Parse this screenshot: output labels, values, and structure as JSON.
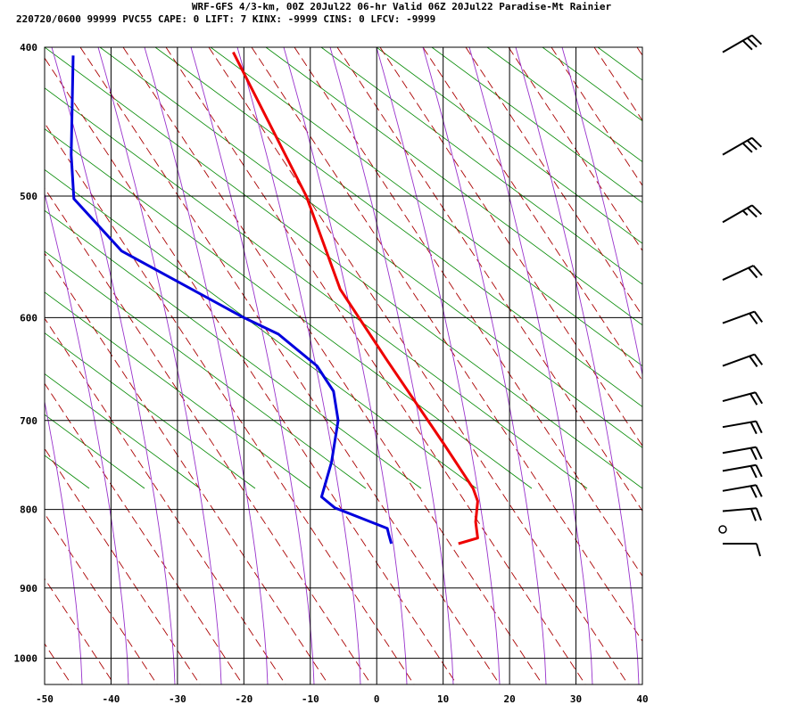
{
  "header": {
    "line1": "WRF-GFS 4/3-km, 00Z 20Jul22 06-hr Valid 06Z 20Jul22 Paradise-Mt Rainier",
    "line2": "220720/0600 99999  PVC55   CAPE:     0 LIFT:     7 KINX: -9999 CINS:     0 LFCV: -9999"
  },
  "chart_data": {
    "type": "line",
    "title": "WRF-GFS 4/3-km, 00Z 20Jul22 06-hr Valid 06Z 20Jul22 Paradise-Mt Rainier",
    "xlabel": "",
    "ylabel": "",
    "x_ticks": [
      "-50",
      "-40",
      "-30",
      "-20",
      "-10",
      "0",
      "10",
      "20",
      "30",
      "40"
    ],
    "y_ticks": [
      "400",
      "500",
      "600",
      "700",
      "800",
      "900",
      "1000"
    ],
    "xlim": [
      -50,
      40
    ],
    "ylim": [
      1040,
      400
    ],
    "y_scale": "log",
    "grid": true,
    "colors": {
      "temperature": "#ee0000",
      "dewpoint": "#0000dd",
      "dry_adiabat": "#008800",
      "saturated_adiabat": "#9933cc",
      "mixing_ratio": "#aa0000",
      "grid": "#000000"
    },
    "series": [
      {
        "key": "temperature",
        "x": [
          12.3,
          15.2,
          14.9,
          15.2,
          14.5,
          10.1,
          1.6,
          -5.5,
          -10.6,
          -21.6
        ],
        "y": [
          842,
          835,
          815,
          790,
          775,
          725,
          640,
          575,
          500,
          403
        ]
      },
      {
        "key": "dewpoint",
        "x": [
          2.2,
          1.8,
          1.6,
          -6.3,
          -8.3,
          -6.8,
          -5.8,
          -6.5,
          -9.0,
          -14.8,
          -20.0,
          -38.4,
          -45.6,
          -46.0,
          -45.7
        ],
        "y": [
          842,
          830,
          823,
          798,
          785,
          745,
          700,
          670,
          645,
          615,
          600,
          543,
          502,
          470,
          405
        ]
      }
    ],
    "wind_barbs": [
      {
        "p": 403,
        "dir": 240,
        "spd": 30
      },
      {
        "p": 470,
        "dir": 240,
        "spd": 30
      },
      {
        "p": 520,
        "dir": 240,
        "spd": 25
      },
      {
        "p": 567,
        "dir": 245,
        "spd": 20
      },
      {
        "p": 605,
        "dir": 250,
        "spd": 20
      },
      {
        "p": 645,
        "dir": 250,
        "spd": 20
      },
      {
        "p": 680,
        "dir": 255,
        "spd": 20
      },
      {
        "p": 707,
        "dir": 260,
        "spd": 20
      },
      {
        "p": 735,
        "dir": 260,
        "spd": 20
      },
      {
        "p": 755,
        "dir": 260,
        "spd": 20
      },
      {
        "p": 778,
        "dir": 260,
        "spd": 20
      },
      {
        "p": 802,
        "dir": 265,
        "spd": 20
      },
      {
        "p": 842,
        "dir": 270,
        "spd": 10
      }
    ]
  }
}
